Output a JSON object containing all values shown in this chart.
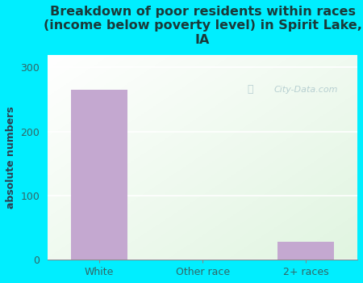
{
  "title": "Breakdown of poor residents within races\n(income below poverty level) in Spirit Lake,\nIA",
  "categories": [
    "White",
    "Other race",
    "2+ races"
  ],
  "values": [
    265,
    0,
    28
  ],
  "bar_color": "#c4a8d0",
  "ylabel": "absolute numbers",
  "ylim": [
    0,
    320
  ],
  "yticks": [
    0,
    100,
    200,
    300
  ],
  "background_outer": "#00eeff",
  "background_inner": "#e8f5e9",
  "grid_color": "#ffffff",
  "title_color": "#1a3a3a",
  "axis_label_color": "#2c3e50",
  "tick_label_color": "#336666",
  "watermark": "City-Data.com",
  "bar_width": 0.55,
  "title_fontsize": 11.5,
  "ylabel_fontsize": 9
}
